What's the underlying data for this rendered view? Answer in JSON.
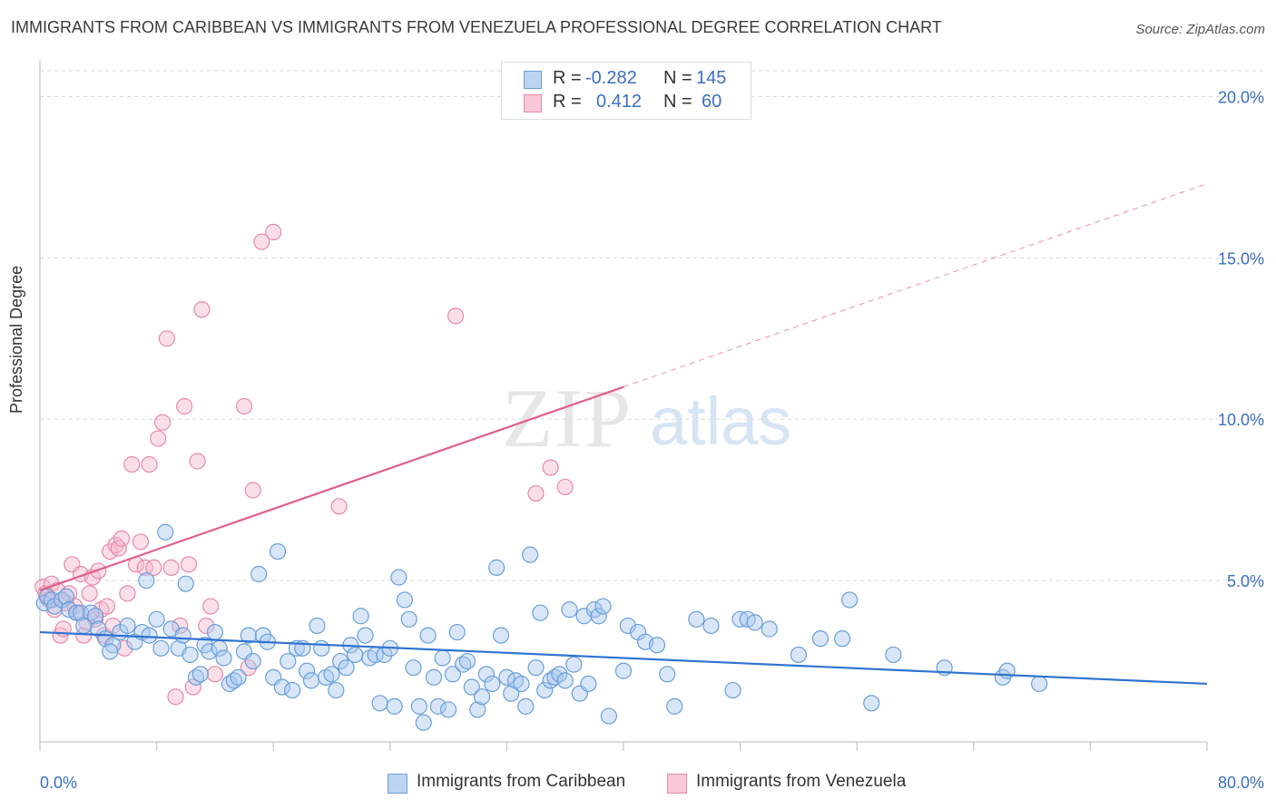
{
  "title": "IMMIGRANTS FROM CARIBBEAN VS IMMIGRANTS FROM VENEZUELA PROFESSIONAL DEGREE CORRELATION CHART",
  "source": "Source: ZipAtlas.com",
  "watermark": {
    "zip": "ZIP",
    "atlas": "atlas"
  },
  "legend": {
    "rows": [
      {
        "r_label": "R =",
        "r_value": "-0.282",
        "n_label": "N =",
        "n_value": "145"
      },
      {
        "r_label": "R =",
        "r_value": "0.412",
        "n_label": "N =",
        "n_value": "60"
      }
    ]
  },
  "bottom_legend": {
    "caribbean": "Immigrants from Caribbean",
    "venezuela": "Immigrants from Venezuela"
  },
  "colors": {
    "blue_fill": "#a9c8f0",
    "blue_stroke": "#6a9fd8",
    "blue_line": "#2f73d0",
    "pink_fill": "#f6b8cc",
    "pink_stroke": "#e88aa8",
    "pink_line": "#e0608a",
    "grid": "#d9d9d9",
    "axis_text": "#3b6fc2"
  },
  "chart_data": {
    "type": "scatter",
    "xlabel": "",
    "ylabel": "Professional Degree",
    "xlim": [
      0,
      80
    ],
    "ylim": [
      0,
      20.8
    ],
    "x_tick_labels": [
      "0.0%",
      "80.0%"
    ],
    "y_ticks": [
      5,
      10,
      15,
      20
    ],
    "y_tick_labels": [
      "5.0%",
      "10.0%",
      "15.0%",
      "20.0%"
    ],
    "grid": true,
    "legend_position": "top-center",
    "series": [
      {
        "name": "Immigrants from Caribbean",
        "r": -0.282,
        "n": 145,
        "trend": {
          "x0": 0,
          "y0": 3.4,
          "x1": 80,
          "y1": 1.8
        },
        "points": [
          [
            0.3,
            4.3
          ],
          [
            0.5,
            4.5
          ],
          [
            0.8,
            4.4
          ],
          [
            1.0,
            4.2
          ],
          [
            1.5,
            4.4
          ],
          [
            1.8,
            4.5
          ],
          [
            2.0,
            4.1
          ],
          [
            2.5,
            4.0
          ],
          [
            2.8,
            4.0
          ],
          [
            3.0,
            3.6
          ],
          [
            3.5,
            4.0
          ],
          [
            3.8,
            3.9
          ],
          [
            4.0,
            3.5
          ],
          [
            4.5,
            3.2
          ],
          [
            5.0,
            3.0
          ],
          [
            4.8,
            2.8
          ],
          [
            5.5,
            3.4
          ],
          [
            6.0,
            3.6
          ],
          [
            6.5,
            3.1
          ],
          [
            7.0,
            3.4
          ],
          [
            7.3,
            5.0
          ],
          [
            7.5,
            3.3
          ],
          [
            8.0,
            3.8
          ],
          [
            8.3,
            2.9
          ],
          [
            8.6,
            6.5
          ],
          [
            9.0,
            3.5
          ],
          [
            9.5,
            2.9
          ],
          [
            9.8,
            3.3
          ],
          [
            10.0,
            4.9
          ],
          [
            10.3,
            2.7
          ],
          [
            10.7,
            2.0
          ],
          [
            11.0,
            2.1
          ],
          [
            11.3,
            3.0
          ],
          [
            11.6,
            2.8
          ],
          [
            12.0,
            3.4
          ],
          [
            12.3,
            2.9
          ],
          [
            12.6,
            2.6
          ],
          [
            13.0,
            1.8
          ],
          [
            13.3,
            1.9
          ],
          [
            13.6,
            2.0
          ],
          [
            14.0,
            2.8
          ],
          [
            14.3,
            3.3
          ],
          [
            14.6,
            2.5
          ],
          [
            15.0,
            5.2
          ],
          [
            15.3,
            3.3
          ],
          [
            15.6,
            3.1
          ],
          [
            16.0,
            2.0
          ],
          [
            16.3,
            5.9
          ],
          [
            16.6,
            1.7
          ],
          [
            17.0,
            2.5
          ],
          [
            17.3,
            1.6
          ],
          [
            17.6,
            2.9
          ],
          [
            18.0,
            2.9
          ],
          [
            18.3,
            2.2
          ],
          [
            18.6,
            1.9
          ],
          [
            19.0,
            3.6
          ],
          [
            19.3,
            2.9
          ],
          [
            19.6,
            2.0
          ],
          [
            20.0,
            2.1
          ],
          [
            20.3,
            1.6
          ],
          [
            20.6,
            2.5
          ],
          [
            21.0,
            2.3
          ],
          [
            21.3,
            3.0
          ],
          [
            21.6,
            2.7
          ],
          [
            22.0,
            3.9
          ],
          [
            22.3,
            3.3
          ],
          [
            22.6,
            2.6
          ],
          [
            23.0,
            2.7
          ],
          [
            23.3,
            1.2
          ],
          [
            23.6,
            2.7
          ],
          [
            24.0,
            2.9
          ],
          [
            24.3,
            1.1
          ],
          [
            24.6,
            5.1
          ],
          [
            25.0,
            4.4
          ],
          [
            25.3,
            3.8
          ],
          [
            25.6,
            2.3
          ],
          [
            26.0,
            1.1
          ],
          [
            26.3,
            0.6
          ],
          [
            26.6,
            3.3
          ],
          [
            27.0,
            2.0
          ],
          [
            27.3,
            1.1
          ],
          [
            27.6,
            2.6
          ],
          [
            28.0,
            1.0
          ],
          [
            28.3,
            2.1
          ],
          [
            28.6,
            3.4
          ],
          [
            29.0,
            2.4
          ],
          [
            29.3,
            2.5
          ],
          [
            29.6,
            1.7
          ],
          [
            30.0,
            1.0
          ],
          [
            30.3,
            1.4
          ],
          [
            30.6,
            2.1
          ],
          [
            31.0,
            1.8
          ],
          [
            31.3,
            5.4
          ],
          [
            31.6,
            3.3
          ],
          [
            32.0,
            2.0
          ],
          [
            32.3,
            1.5
          ],
          [
            32.6,
            1.9
          ],
          [
            33.0,
            1.8
          ],
          [
            33.3,
            1.1
          ],
          [
            33.6,
            5.8
          ],
          [
            34.0,
            2.3
          ],
          [
            34.3,
            4.0
          ],
          [
            34.6,
            1.6
          ],
          [
            35.0,
            1.9
          ],
          [
            35.3,
            2.0
          ],
          [
            35.6,
            2.1
          ],
          [
            36.0,
            1.9
          ],
          [
            36.3,
            4.1
          ],
          [
            36.6,
            2.4
          ],
          [
            37.0,
            1.5
          ],
          [
            37.3,
            3.9
          ],
          [
            37.6,
            1.8
          ],
          [
            38.0,
            4.1
          ],
          [
            38.3,
            3.9
          ],
          [
            38.6,
            4.2
          ],
          [
            39.0,
            0.8
          ],
          [
            40.0,
            2.2
          ],
          [
            40.3,
            3.6
          ],
          [
            41.0,
            3.4
          ],
          [
            41.5,
            3.1
          ],
          [
            42.3,
            3.0
          ],
          [
            43.0,
            2.1
          ],
          [
            43.5,
            1.1
          ],
          [
            45.0,
            3.8
          ],
          [
            46.0,
            3.6
          ],
          [
            47.5,
            1.6
          ],
          [
            48.0,
            3.8
          ],
          [
            48.5,
            3.8
          ],
          [
            49.0,
            3.7
          ],
          [
            50.0,
            3.5
          ],
          [
            52.0,
            2.7
          ],
          [
            53.5,
            3.2
          ],
          [
            55.0,
            3.2
          ],
          [
            55.5,
            4.4
          ],
          [
            57.0,
            1.2
          ],
          [
            58.5,
            2.7
          ],
          [
            62.0,
            2.3
          ],
          [
            66.0,
            2.0
          ],
          [
            66.3,
            2.2
          ],
          [
            68.5,
            1.8
          ]
        ]
      },
      {
        "name": "Immigrants from Venezuela",
        "r": 0.412,
        "n": 60,
        "trend": {
          "x0": 0,
          "y0": 4.7,
          "x1": 40,
          "y1": 11.0
        },
        "trend_dashed": {
          "x0": 40,
          "y0": 11.0,
          "x1": 80,
          "y1": 17.3
        },
        "points": [
          [
            0.2,
            4.8
          ],
          [
            0.4,
            4.6
          ],
          [
            0.6,
            4.4
          ],
          [
            0.8,
            4.9
          ],
          [
            1.0,
            4.1
          ],
          [
            1.2,
            4.7
          ],
          [
            1.4,
            3.3
          ],
          [
            1.6,
            3.5
          ],
          [
            1.8,
            4.3
          ],
          [
            2.0,
            4.6
          ],
          [
            2.2,
            5.5
          ],
          [
            2.4,
            4.2
          ],
          [
            2.6,
            4.0
          ],
          [
            2.8,
            5.2
          ],
          [
            3.0,
            3.3
          ],
          [
            3.2,
            3.7
          ],
          [
            3.4,
            4.6
          ],
          [
            3.6,
            5.1
          ],
          [
            3.8,
            3.8
          ],
          [
            4.0,
            5.3
          ],
          [
            4.2,
            4.1
          ],
          [
            4.4,
            3.3
          ],
          [
            4.6,
            4.2
          ],
          [
            4.8,
            5.9
          ],
          [
            5.0,
            3.6
          ],
          [
            5.2,
            6.1
          ],
          [
            5.4,
            6.0
          ],
          [
            5.6,
            6.3
          ],
          [
            5.8,
            2.9
          ],
          [
            6.0,
            4.6
          ],
          [
            6.3,
            8.6
          ],
          [
            6.6,
            5.5
          ],
          [
            6.9,
            6.2
          ],
          [
            7.2,
            5.4
          ],
          [
            7.5,
            8.6
          ],
          [
            7.8,
            5.4
          ],
          [
            8.1,
            9.4
          ],
          [
            8.4,
            9.9
          ],
          [
            8.7,
            12.5
          ],
          [
            9.0,
            5.4
          ],
          [
            9.3,
            1.4
          ],
          [
            9.6,
            3.6
          ],
          [
            9.9,
            10.4
          ],
          [
            10.2,
            5.5
          ],
          [
            10.5,
            1.7
          ],
          [
            10.8,
            8.7
          ],
          [
            11.1,
            13.4
          ],
          [
            11.4,
            3.6
          ],
          [
            11.7,
            4.2
          ],
          [
            12.0,
            2.1
          ],
          [
            14.0,
            10.4
          ],
          [
            14.3,
            2.3
          ],
          [
            14.6,
            7.8
          ],
          [
            15.2,
            15.5
          ],
          [
            16.0,
            15.8
          ],
          [
            20.5,
            7.3
          ],
          [
            28.5,
            13.2
          ],
          [
            34.0,
            7.7
          ],
          [
            35.0,
            8.5
          ],
          [
            36.0,
            7.9
          ]
        ]
      }
    ]
  }
}
